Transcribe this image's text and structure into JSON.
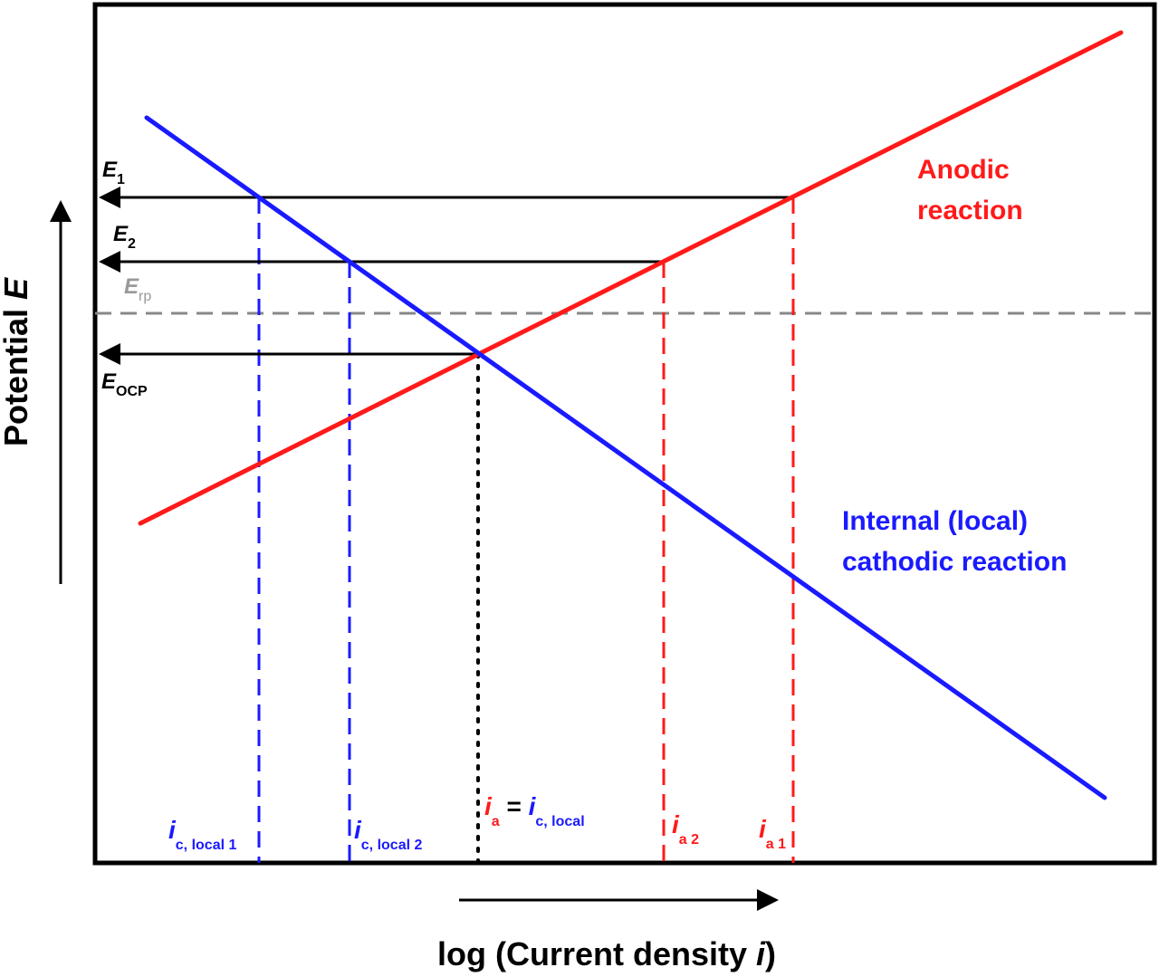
{
  "axes": {
    "y_label": {
      "text": "Potential ",
      "var": "E"
    },
    "x_label": {
      "text": "log (Current density ",
      "var": "i",
      "end": ")"
    }
  },
  "curves": {
    "anodic": [
      "Anodic",
      "reaction"
    ],
    "cathodic": [
      "Internal (local)",
      "cathodic reaction"
    ]
  },
  "potentials": {
    "e1": {
      "main": "E",
      "sub": "1"
    },
    "e2": {
      "main": "E",
      "sub": "2"
    },
    "erp": {
      "main": "E",
      "sub": "rp"
    },
    "eocp": {
      "main": "E",
      "sub": "OCP"
    }
  },
  "currents": {
    "ic_local1": {
      "main": "i",
      "sub": "c, local 1"
    },
    "ic_local2": {
      "main": "i",
      "sub": "c, local 2"
    },
    "balance": {
      "left_main": "i",
      "left_sub": "a",
      "eq": " = ",
      "right_main": "i",
      "right_sub": "c, local"
    },
    "ia2": {
      "main": "i",
      "sub": "a 2"
    },
    "ia1": {
      "main": "i",
      "sub": "a 1"
    }
  }
}
